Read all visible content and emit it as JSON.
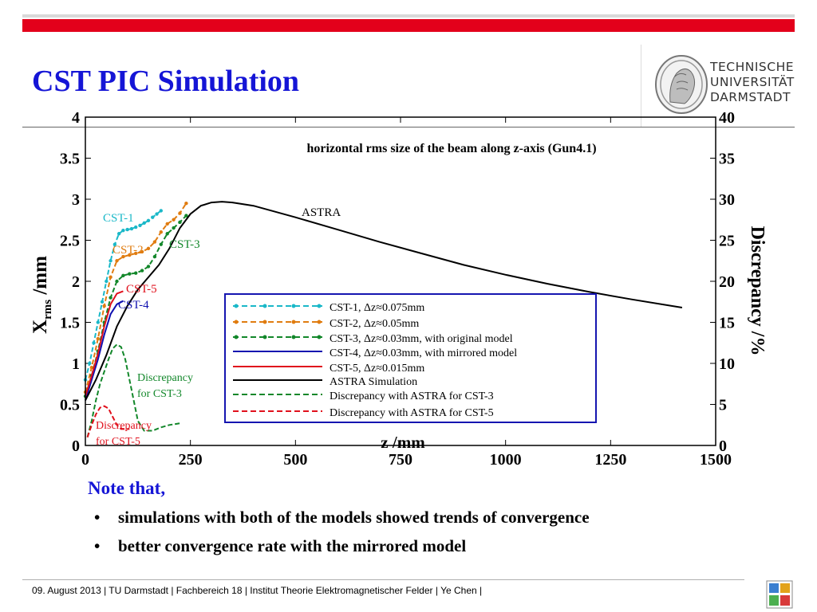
{
  "slide": {
    "title": "CST PIC Simulation",
    "logo_lines": [
      "TECHNISCHE",
      "UNIVERSITÄT",
      "DARMSTADT"
    ],
    "note_heading": "Note that,",
    "bullets": [
      "simulations with both of the models showed trends of convergence",
      "better convergence rate with the mirrored model"
    ],
    "footer": "09. August 2013  |  TU Darmstadt  |  Fachbereich 18  |  Institut Theorie Elektromagnetischer Felder  |  Ye Chen |",
    "colors": {
      "accent": "#e3001b",
      "title": "#1515d6"
    }
  },
  "chart_data": {
    "type": "line",
    "title": "horizontal rms size of the beam along z-axis (Gun4.1)",
    "xlabel": "z /mm",
    "ylabel_main": "X",
    "ylabel_sub": "rms",
    "ylabel_unit": " /mm",
    "ylabel_right": "Discrepancy /%",
    "xlim": [
      0,
      1500
    ],
    "ylim": [
      0,
      4
    ],
    "ylim_right": [
      0,
      40
    ],
    "xticks": [
      0,
      250,
      500,
      750,
      1000,
      1250,
      1500
    ],
    "xtick_labels": [
      "0",
      "250",
      "500",
      "750",
      "1000",
      "1250",
      "1500"
    ],
    "yticks": [
      0,
      0.5,
      1,
      1.5,
      2,
      2.5,
      3,
      3.5,
      4
    ],
    "ytick_labels": [
      "0",
      "0.5",
      "1",
      "1.5",
      "2",
      "2.5",
      "3",
      "3.5",
      "4"
    ],
    "yticks_right": [
      0,
      5,
      10,
      15,
      20,
      25,
      30,
      35,
      40
    ],
    "ytick_labels_right": [
      "0",
      "5",
      "10",
      "15",
      "20",
      "25",
      "30",
      "35",
      "40"
    ],
    "legend_position": "center-right",
    "series": [
      {
        "name": "CST-1, Δz≈0.075mm",
        "label": "CST-1",
        "axis": "left",
        "color": "#1ab8c8",
        "dash": "dashed-dots",
        "x": [
          0,
          10,
          20,
          30,
          40,
          50,
          60,
          70,
          80,
          90,
          100,
          110,
          120,
          130,
          140,
          150,
          160,
          170,
          180
        ],
        "y": [
          0.8,
          1.0,
          1.25,
          1.5,
          1.75,
          2.0,
          2.25,
          2.45,
          2.58,
          2.62,
          2.63,
          2.64,
          2.66,
          2.68,
          2.71,
          2.74,
          2.78,
          2.82,
          2.86
        ]
      },
      {
        "name": "CST-2, Δz≈0.05mm",
        "label": "CST-2",
        "axis": "left",
        "color": "#e07c10",
        "dash": "dashed-dots",
        "x": [
          0,
          15,
          30,
          45,
          60,
          75,
          90,
          105,
          120,
          135,
          150,
          165,
          180,
          195,
          210,
          225,
          240
        ],
        "y": [
          0.65,
          0.95,
          1.3,
          1.7,
          2.05,
          2.25,
          2.3,
          2.32,
          2.34,
          2.36,
          2.4,
          2.48,
          2.6,
          2.7,
          2.75,
          2.83,
          2.95
        ]
      },
      {
        "name": "CST-3, Δz≈0.03mm, with original model",
        "label": "CST-3",
        "axis": "left",
        "color": "#12872a",
        "dash": "dashed-dots",
        "x": [
          0,
          15,
          30,
          45,
          60,
          75,
          90,
          105,
          120,
          135,
          150,
          165,
          180,
          195,
          210,
          225,
          240
        ],
        "y": [
          0.6,
          0.85,
          1.15,
          1.5,
          1.8,
          2.0,
          2.07,
          2.09,
          2.1,
          2.13,
          2.18,
          2.3,
          2.45,
          2.58,
          2.65,
          2.72,
          2.8
        ]
      },
      {
        "name": "CST-4, Δz≈0.03mm, with mirrored model",
        "label": "CST-4",
        "axis": "left",
        "color": "#1010b0",
        "dash": "solid",
        "x": [
          0,
          15,
          30,
          45,
          60,
          75,
          90
        ],
        "y": [
          0.55,
          0.8,
          1.05,
          1.35,
          1.6,
          1.72,
          1.76
        ]
      },
      {
        "name": "CST-5, Δz≈0.015mm",
        "label": "CST-5",
        "axis": "left",
        "color": "#e0101c",
        "dash": "solid",
        "x": [
          0,
          15,
          30,
          45,
          60,
          75,
          90
        ],
        "y": [
          0.6,
          0.85,
          1.12,
          1.45,
          1.72,
          1.85,
          1.88
        ]
      },
      {
        "name": "ASTRA Simulation",
        "label": "ASTRA",
        "axis": "left",
        "color": "#000000",
        "dash": "solid",
        "x": [
          0,
          25,
          50,
          75,
          100,
          125,
          150,
          175,
          200,
          225,
          250,
          275,
          300,
          325,
          350,
          400,
          500,
          600,
          700,
          800,
          900,
          1000,
          1100,
          1200,
          1300,
          1420
        ],
        "y": [
          0.55,
          0.8,
          1.1,
          1.45,
          1.7,
          1.9,
          2.05,
          2.2,
          2.4,
          2.65,
          2.82,
          2.92,
          2.96,
          2.97,
          2.96,
          2.92,
          2.78,
          2.63,
          2.48,
          2.34,
          2.2,
          2.08,
          1.97,
          1.87,
          1.78,
          1.68
        ]
      },
      {
        "name": "Discrepancy with ASTRA for CST-3",
        "label": "Discrepancy for CST-3",
        "axis": "right",
        "color": "#12872a",
        "dash": "dashed",
        "x": [
          5,
          15,
          25,
          35,
          45,
          55,
          65,
          75,
          85,
          95,
          105,
          115,
          125,
          140,
          160,
          180,
          200,
          225
        ],
        "y": [
          1,
          3,
          5.5,
          7.5,
          9,
          10.5,
          11.8,
          12.3,
          12,
          10.5,
          8,
          5.5,
          3,
          1.8,
          1.8,
          2.2,
          2.5,
          2.7
        ]
      },
      {
        "name": "Discrepancy with ASTRA for CST-5",
        "label": "Discrepancy for CST-5",
        "axis": "right",
        "color": "#e0101c",
        "dash": "dashed",
        "x": [
          5,
          15,
          25,
          35,
          45,
          55,
          65,
          75,
          85,
          95,
          105
        ],
        "y": [
          1,
          2.5,
          3.8,
          4.6,
          4.8,
          4.5,
          3.5,
          2.5,
          2,
          2,
          2
        ]
      }
    ]
  }
}
